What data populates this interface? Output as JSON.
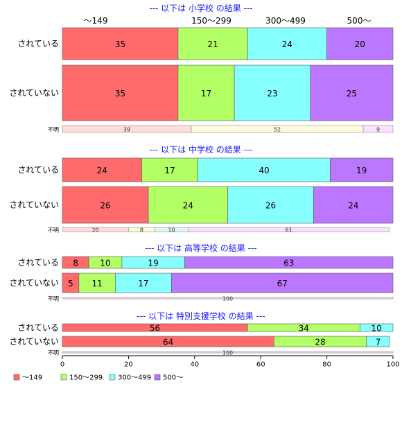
{
  "chart_data": {
    "type": "bar",
    "orientation": "horizontal",
    "stacked": "percent",
    "xlim": [
      0,
      100
    ],
    "xticks": [
      0,
      20,
      40,
      60,
      80,
      100
    ],
    "grid": false,
    "legend_position": "bottom-left",
    "series": [
      {
        "name": "～149",
        "color": "#ff6b6b"
      },
      {
        "name": "150～299",
        "color": "#b3ff66"
      },
      {
        "name": "300～499",
        "color": "#88ffff"
      },
      {
        "name": "500～",
        "color": "#bb77ff"
      }
    ],
    "faded_colors": [
      "#ffdddd",
      "#fffcdc",
      "#ddf7f7",
      "#fbe0ff"
    ],
    "top_column_labels": [
      "～149",
      "150～299",
      "300～499",
      "500～"
    ],
    "panels": [
      {
        "title": "--- 以下は 小学校 の結果 ---",
        "rows": [
          {
            "label": "されている",
            "values": [
              35,
              21,
              24,
              20
            ]
          },
          {
            "label": "されていない",
            "values": [
              35,
              17,
              23,
              25
            ]
          }
        ],
        "unknown": {
          "label": "不明",
          "values": [
            39,
            52,
            9
          ],
          "colors": [
            "#ffdddd",
            "#fffcdc",
            "#fbe0ff"
          ]
        }
      },
      {
        "title": "--- 以下は 中学校 の結果 ---",
        "rows": [
          {
            "label": "されている",
            "values": [
              24,
              17,
              40,
              19
            ]
          },
          {
            "label": "されていない",
            "values": [
              26,
              24,
              26,
              24
            ]
          }
        ],
        "unknown": {
          "label": "不明",
          "values": [
            20,
            8,
            10,
            61
          ],
          "colors": [
            "#ffdddd",
            "#fffcdc",
            "#ddf7f7",
            "#fbe0ff"
          ]
        }
      },
      {
        "title": "--- 以下は 高等学校 の結果 ---",
        "rows": [
          {
            "label": "されている",
            "values": [
              8,
              10,
              19,
              63
            ]
          },
          {
            "label": "されていない",
            "values": [
              5,
              11,
              17,
              67
            ]
          }
        ],
        "unknown": {
          "label": "不明",
          "values": [
            100
          ],
          "colors": [
            "#fbe0ff"
          ]
        }
      },
      {
        "title": "--- 以下は 特別支援学校 の結果 ---",
        "rows": [
          {
            "label": "されている",
            "values": [
              56,
              34,
              10
            ]
          },
          {
            "label": "されていない",
            "values": [
              64,
              28,
              7
            ]
          }
        ],
        "unknown": {
          "label": "不明",
          "values": [
            100
          ],
          "colors": [
            "#ffdddd"
          ]
        }
      }
    ]
  }
}
